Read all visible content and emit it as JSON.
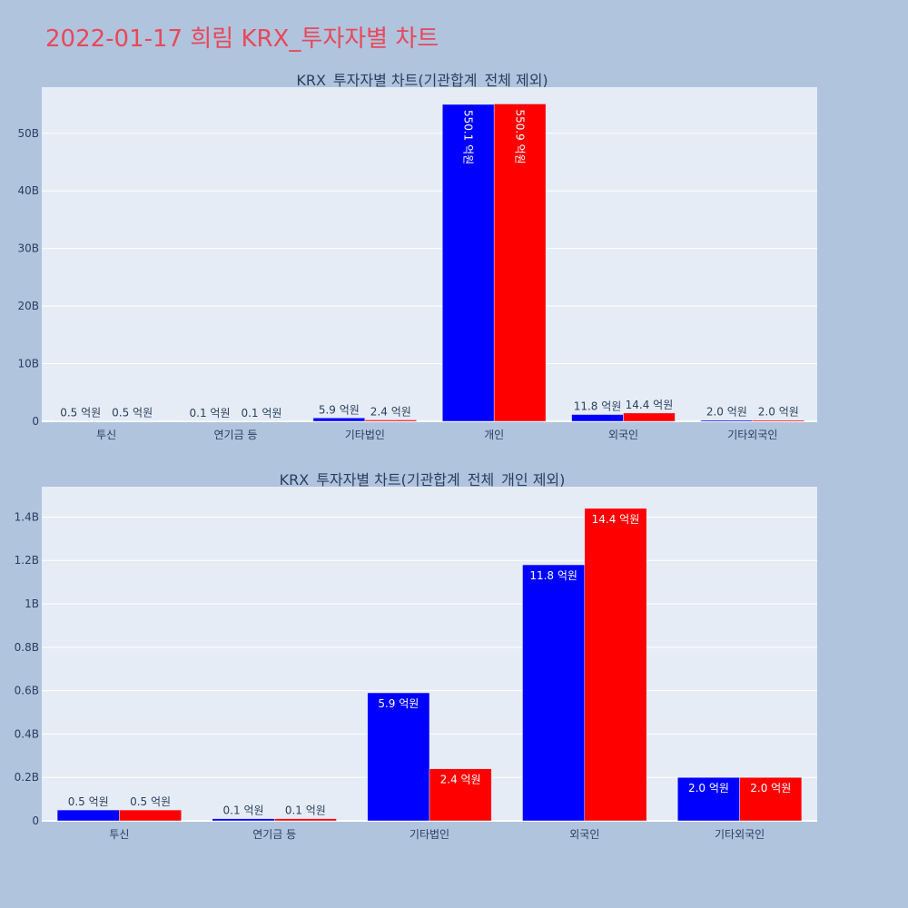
{
  "page": {
    "title": "2022-01-17 희림 KRX_투자자별 차트"
  },
  "colors": {
    "background": "#b0c4de",
    "plot_bg": "#e5ecf6",
    "title": "#e8485a",
    "series_a": "#0000ff",
    "series_b": "#ff0000",
    "text": "#2a3f5f"
  },
  "chart_data": [
    {
      "type": "bar",
      "title": "KRX_투자자별 차트(기관합계_전체 제외)",
      "categories": [
        "투신",
        "연기금 등",
        "기타법인",
        "개인",
        "외국인",
        "기타외국인"
      ],
      "series": [
        {
          "color": "#0000ff",
          "values": [
            50000000,
            10000000,
            590000000,
            55010000000,
            1180000000,
            200000000
          ],
          "labels": [
            "0.5 억원",
            "0.1 억원",
            "5.9 억원",
            "550.1 억원",
            "11.8 억원",
            "2.0 억원"
          ]
        },
        {
          "color": "#ff0000",
          "values": [
            50000000,
            10000000,
            240000000,
            55090000000,
            1440000000,
            200000000
          ],
          "labels": [
            "0.5 억원",
            "0.1 억원",
            "2.4 억원",
            "550.9 억원",
            "14.4 억원",
            "2.0 억원"
          ]
        }
      ],
      "ylim": [
        0,
        58000000000
      ],
      "yticks": [
        0,
        10000000000,
        20000000000,
        30000000000,
        40000000000,
        50000000000
      ],
      "yticklabels": [
        "0",
        "10B",
        "20B",
        "30B",
        "40B",
        "50B"
      ],
      "grid": true
    },
    {
      "type": "bar",
      "title": "KRX_투자자별 차트(기관합계_전체_개인 제외)",
      "categories": [
        "투신",
        "연기금 등",
        "기타법인",
        "외국인",
        "기타외국인"
      ],
      "series": [
        {
          "color": "#0000ff",
          "values": [
            50000000,
            10000000,
            590000000,
            1180000000,
            200000000
          ],
          "labels": [
            "0.5 억원",
            "0.1 억원",
            "5.9 억원",
            "11.8 억원",
            "2.0 억원"
          ]
        },
        {
          "color": "#ff0000",
          "values": [
            50000000,
            10000000,
            240000000,
            1440000000,
            200000000
          ],
          "labels": [
            "0.5 억원",
            "0.1 억원",
            "2.4 억원",
            "14.4 억원",
            "2.0 억원"
          ]
        }
      ],
      "ylim": [
        0,
        1540000000
      ],
      "yticks": [
        0,
        200000000,
        400000000,
        600000000,
        800000000,
        1000000000,
        1200000000,
        1400000000
      ],
      "yticklabels": [
        "0",
        "0.2B",
        "0.4B",
        "0.6B",
        "0.8B",
        "1B",
        "1.2B",
        "1.4B"
      ],
      "grid": true
    }
  ]
}
